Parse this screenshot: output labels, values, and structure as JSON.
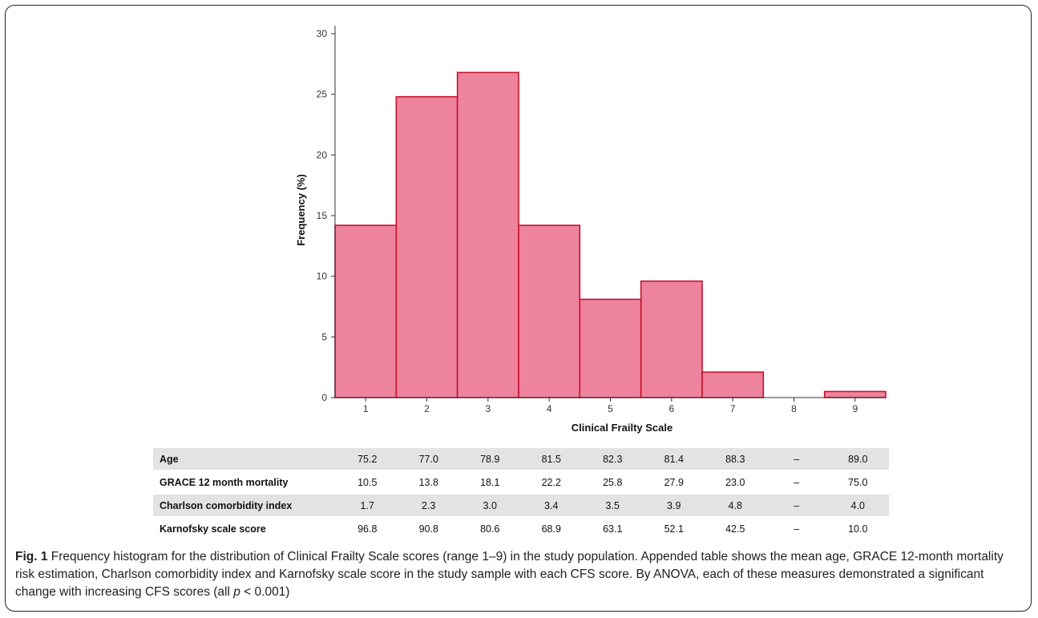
{
  "chart_data": {
    "type": "bar",
    "categories": [
      "1",
      "2",
      "3",
      "4",
      "5",
      "6",
      "7",
      "8",
      "9"
    ],
    "values": [
      14.2,
      24.8,
      26.8,
      14.2,
      8.1,
      9.6,
      2.1,
      0,
      0.5
    ],
    "xlabel": "Clinical Frailty Scale",
    "ylabel": "Frequency (%)",
    "ylim": [
      0,
      30
    ],
    "yticks": [
      0,
      5,
      10,
      15,
      20,
      25,
      30
    ],
    "grid": false,
    "bar_fill": "#ee839d",
    "bar_stroke": "#c8102e"
  },
  "table": {
    "rows": [
      {
        "label": "Age",
        "values": [
          "75.2",
          "77.0",
          "78.9",
          "81.5",
          "82.3",
          "81.4",
          "88.3",
          "–",
          "89.0"
        ]
      },
      {
        "label": "GRACE 12 month mortality",
        "values": [
          "10.5",
          "13.8",
          "18.1",
          "22.2",
          "25.8",
          "27.9",
          "23.0",
          "–",
          "75.0"
        ]
      },
      {
        "label": "Charlson comorbidity index",
        "values": [
          "1.7",
          "2.3",
          "3.0",
          "3.4",
          "3.5",
          "3.9",
          "4.8",
          "–",
          "4.0"
        ]
      },
      {
        "label": "Karnofsky scale score",
        "values": [
          "96.8",
          "90.8",
          "80.6",
          "68.9",
          "63.1",
          "52.1",
          "42.5",
          "–",
          "10.0"
        ]
      }
    ]
  },
  "caption": {
    "fig_label": "Fig. 1",
    "text_before_p": " Frequency histogram for the distribution of Clinical Frailty Scale scores (range 1–9) in the study population. Appended table shows the mean age, GRACE 12-month mortality risk estimation, Charlson comorbidity index and Karnofsky scale score in the study sample with each CFS score. By ANOVA, each of these measures demonstrated a significant change with increasing CFS scores (all ",
    "p_symbol": "p",
    "text_after_p": " < 0.001)"
  }
}
